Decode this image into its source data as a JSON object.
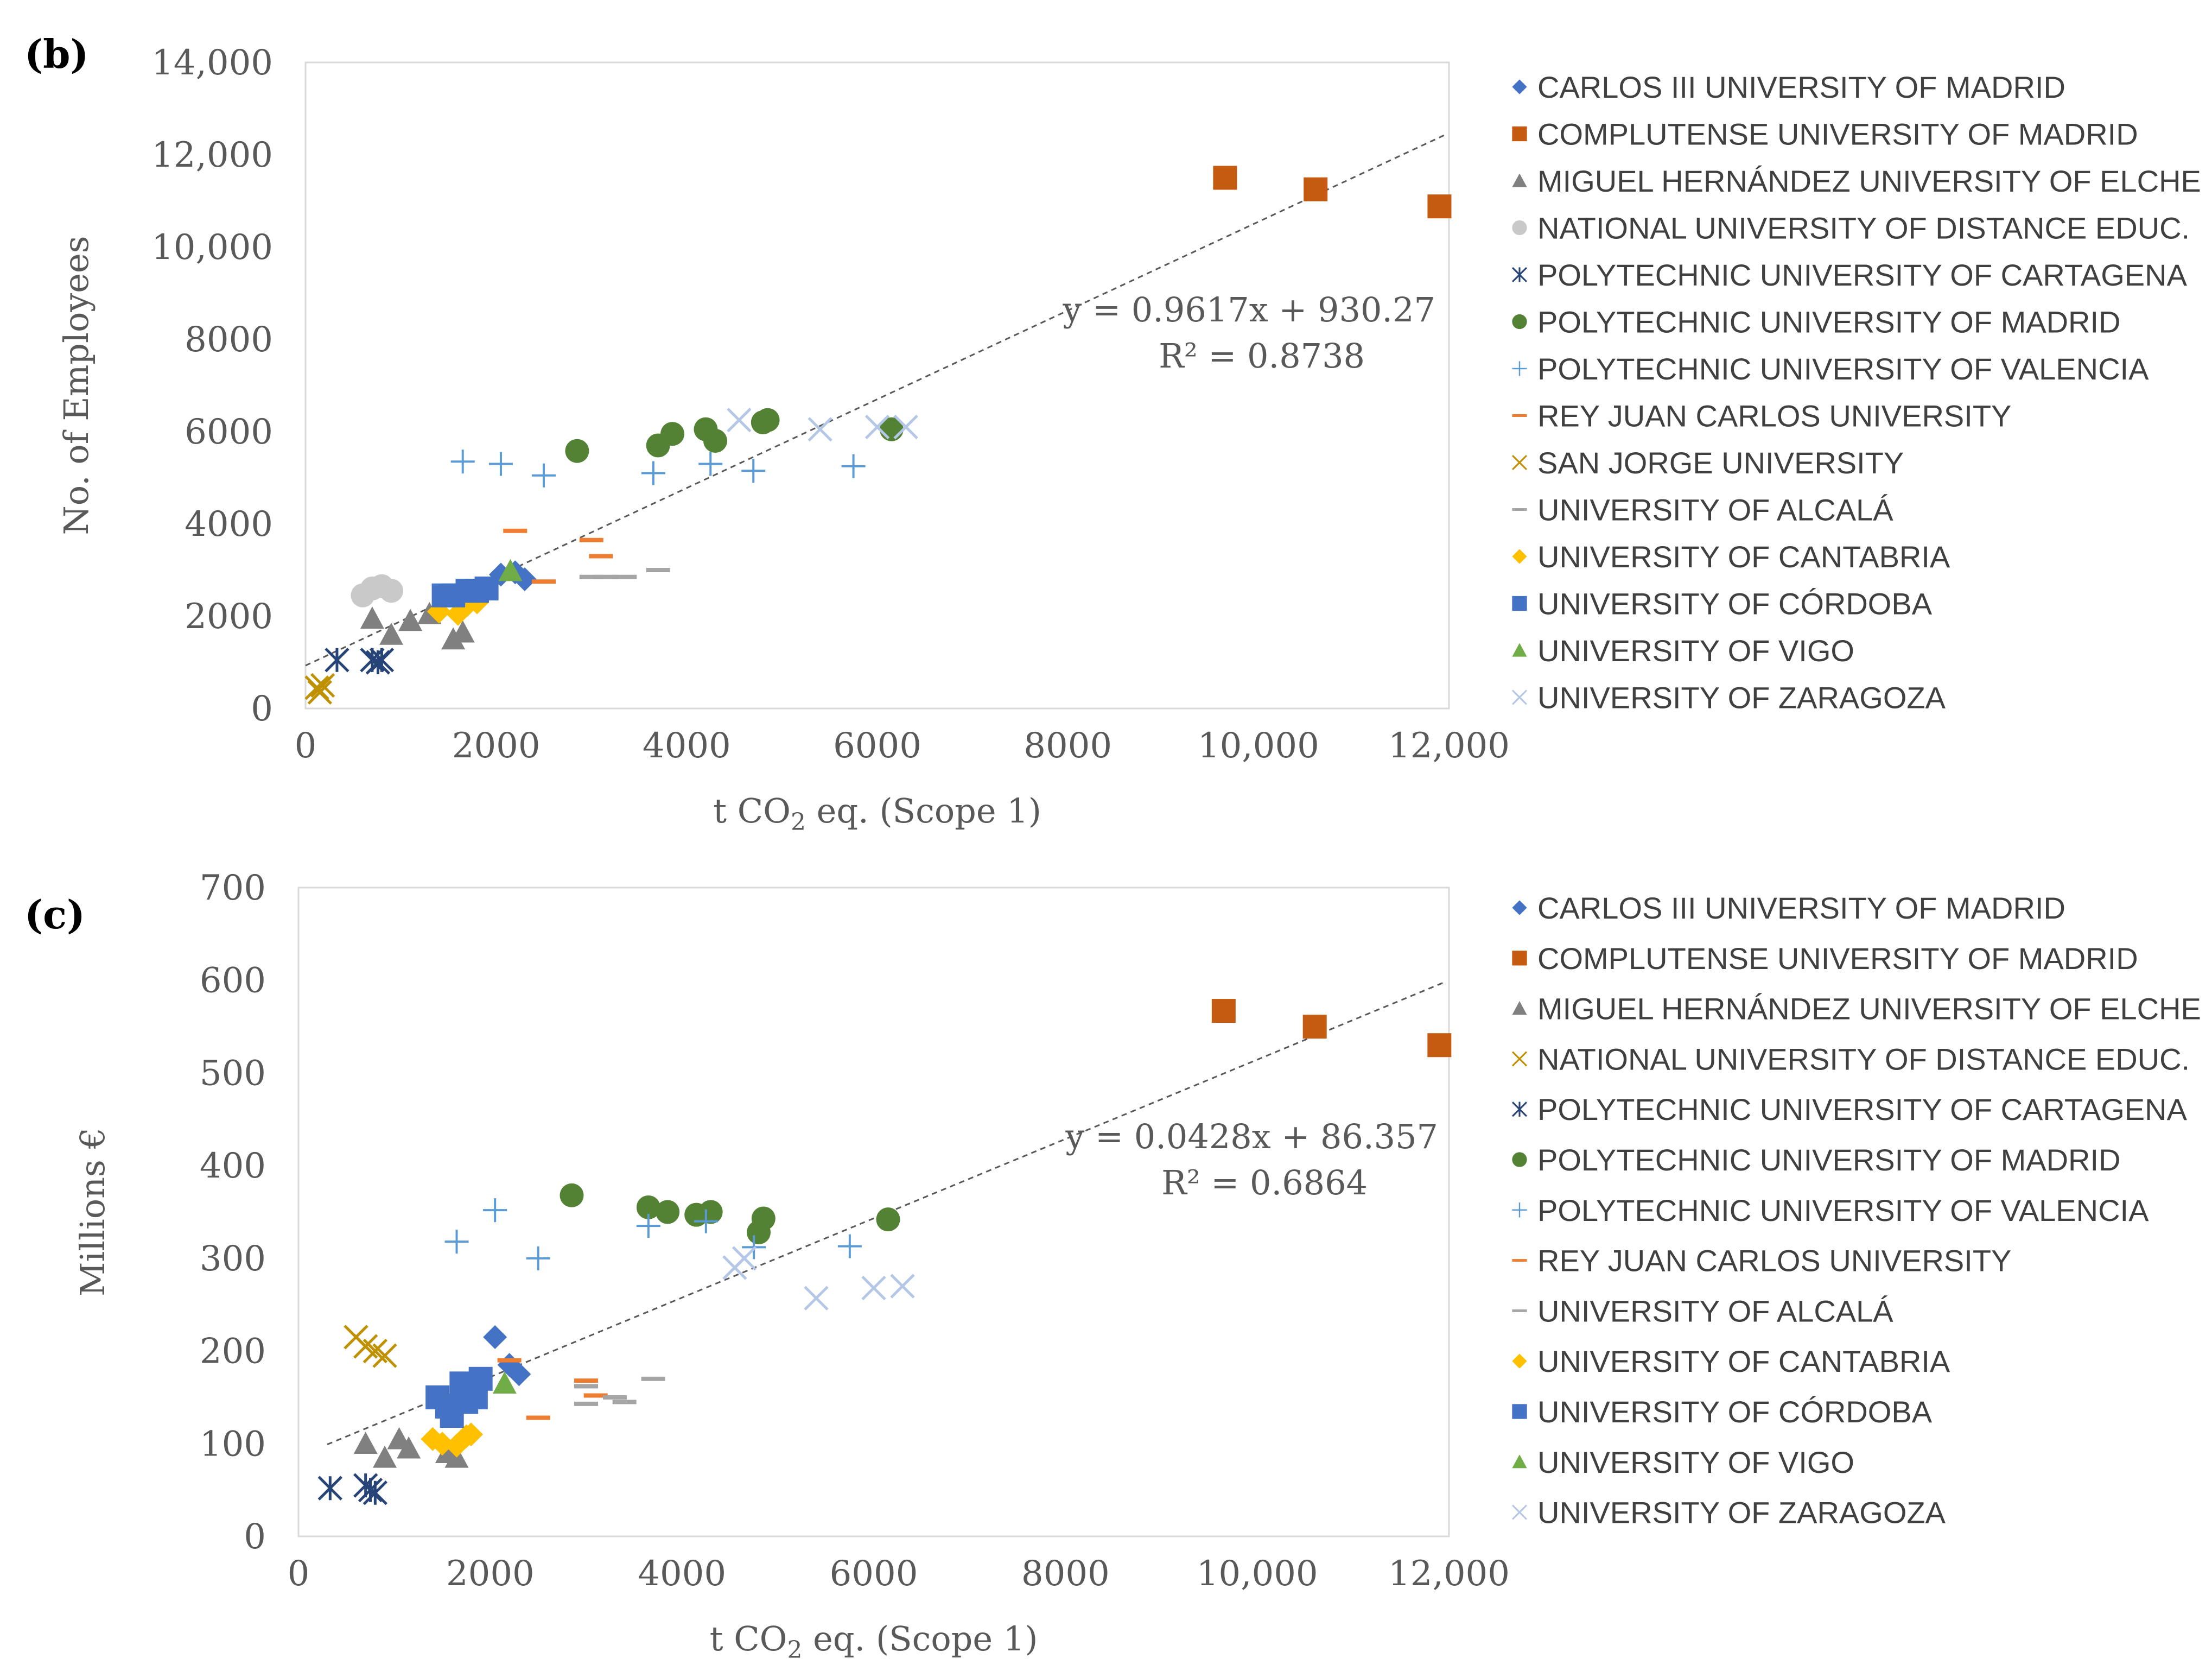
{
  "chart_data": [
    {
      "panel": "(b)",
      "type": "scatter",
      "xlabel": "t CO2 eq. (Scope 1)",
      "ylabel": "No. of Employees",
      "xlim": [
        0,
        12000
      ],
      "ylim": [
        0,
        14000
      ],
      "xticks": [
        "0",
        "2000",
        "4000",
        "6000",
        "8000",
        "10,000",
        "12,000"
      ],
      "yticks": [
        "0",
        "2000",
        "4000",
        "6000",
        "8000",
        "10,000",
        "12,000",
        "14,000"
      ],
      "trendline": {
        "slope": 0.9617,
        "intercept": 930.27,
        "x_range": [
          0,
          11950
        ],
        "equation": "y = 0.9617x + 930.27",
        "r2": "R² = 0.8738"
      },
      "series": [
        {
          "name": "CARLOS III UNIVERSITY OF MADRID",
          "marker": "diamond",
          "color": "#4472C4",
          "points": [
            [
              2050,
              2900
            ],
            [
              2200,
              2950
            ],
            [
              2300,
              2800
            ]
          ]
        },
        {
          "name": "COMPLUTENSE UNIVERSITY OF MADRID",
          "marker": "square",
          "color": "#C55A11",
          "points": [
            [
              9650,
              11500
            ],
            [
              10600,
              11250
            ],
            [
              11900,
              10880
            ]
          ]
        },
        {
          "name": "MIGUEL HERNÁNDEZ UNIVERSITY OF ELCHE",
          "marker": "triangle",
          "color": "#808080",
          "points": [
            [
              700,
              1950
            ],
            [
              900,
              1600
            ],
            [
              1100,
              1900
            ],
            [
              1300,
              2050
            ],
            [
              1550,
              1500
            ],
            [
              1650,
              1650
            ]
          ]
        },
        {
          "name": "NATIONAL UNIVERSITY OF DISTANCE EDUC.",
          "marker": "circle",
          "color": "#C9C9C9",
          "points": [
            [
              600,
              2450
            ],
            [
              700,
              2600
            ],
            [
              800,
              2650
            ],
            [
              900,
              2550
            ]
          ]
        },
        {
          "name": "POLYTECHNIC UNIVERSITY OF CARTAGENA",
          "marker": "asterisk",
          "color": "#264478",
          "points": [
            [
              330,
              1050
            ],
            [
              700,
              1050
            ],
            [
              760,
              1000
            ],
            [
              800,
              1050
            ]
          ]
        },
        {
          "name": "POLYTECHNIC UNIVERSITY OF MADRID",
          "marker": "circle",
          "color": "#548235",
          "points": [
            [
              2850,
              5580
            ],
            [
              3700,
              5700
            ],
            [
              3850,
              5950
            ],
            [
              4200,
              6050
            ],
            [
              4300,
              5800
            ],
            [
              4800,
              6200
            ],
            [
              4850,
              6250
            ],
            [
              6150,
              6050
            ]
          ]
        },
        {
          "name": "POLYTECHNIC UNIVERSITY OF VALENCIA",
          "marker": "plus",
          "color": "#5B9BD5",
          "points": [
            [
              1650,
              5350
            ],
            [
              2050,
              5300
            ],
            [
              2500,
              5050
            ],
            [
              3650,
              5100
            ],
            [
              4250,
              5300
            ],
            [
              4700,
              5150
            ],
            [
              5750,
              5250
            ]
          ]
        },
        {
          "name": "REY JUAN CARLOS UNIVERSITY",
          "marker": "dash",
          "color": "#ED7D31",
          "points": [
            [
              2200,
              3850
            ],
            [
              2500,
              2750
            ],
            [
              3000,
              3650
            ],
            [
              3100,
              3300
            ]
          ]
        },
        {
          "name": "SAN JORGE UNIVERSITY",
          "marker": "x",
          "color": "#BF9000",
          "points": [
            [
              120,
              450
            ],
            [
              150,
              350
            ],
            [
              180,
              500
            ]
          ]
        },
        {
          "name": "UNIVERSITY OF ALCALÁ",
          "marker": "dash",
          "color": "#A5A5A5",
          "points": [
            [
              3000,
              2850
            ],
            [
              3150,
              2850
            ],
            [
              3350,
              2850
            ],
            [
              3700,
              3000
            ]
          ]
        },
        {
          "name": "UNIVERSITY OF CANTABRIA",
          "marker": "diamond",
          "color": "#FFC000",
          "points": [
            [
              1400,
              2100
            ],
            [
              1600,
              2050
            ],
            [
              1700,
              2250
            ],
            [
              1800,
              2300
            ]
          ]
        },
        {
          "name": "UNIVERSITY OF CÓRDOBA",
          "marker": "square",
          "color": "#4472C4",
          "points": [
            [
              1450,
              2450
            ],
            [
              1550,
              2450
            ],
            [
              1700,
              2550
            ],
            [
              1800,
              2550
            ],
            [
              1900,
              2600
            ]
          ]
        },
        {
          "name": "UNIVERSITY OF VIGO",
          "marker": "triangle",
          "color": "#70AD47",
          "points": [
            [
              2150,
              2980
            ]
          ]
        },
        {
          "name": "UNIVERSITY OF ZARAGOZA",
          "marker": "x",
          "color": "#B4C7E7",
          "points": [
            [
              4550,
              6250
            ],
            [
              5400,
              6050
            ],
            [
              6000,
              6100
            ],
            [
              6300,
              6100
            ]
          ]
        }
      ]
    },
    {
      "panel": "(c)",
      "type": "scatter",
      "xlabel": "t CO2 eq. (Scope 1)",
      "ylabel": "Millions €",
      "xlim": [
        0,
        12000
      ],
      "ylim": [
        0,
        700
      ],
      "xticks": [
        "0",
        "2000",
        "4000",
        "6000",
        "8000",
        "10,000",
        "12,000"
      ],
      "yticks": [
        "0",
        "100",
        "200",
        "300",
        "400",
        "500",
        "600",
        "700"
      ],
      "trendline": {
        "slope": 0.0428,
        "intercept": 86.357,
        "x_range": [
          300,
          11950
        ],
        "equation": "y = 0.0428x + 86.357",
        "r2": "R² = 0.6864"
      },
      "series": [
        {
          "name": "CARLOS III UNIVERSITY OF MADRID",
          "marker": "diamond",
          "color": "#4472C4",
          "points": [
            [
              2050,
              215
            ],
            [
              2200,
              185
            ],
            [
              2300,
              175
            ]
          ]
        },
        {
          "name": "COMPLUTENSE UNIVERSITY OF MADRID",
          "marker": "square",
          "color": "#C55A11",
          "points": [
            [
              9650,
              567
            ],
            [
              10600,
              550
            ],
            [
              11900,
              530
            ]
          ]
        },
        {
          "name": "MIGUEL HERNÁNDEZ UNIVERSITY OF ELCHE",
          "marker": "triangle",
          "color": "#808080",
          "points": [
            [
              700,
              100
            ],
            [
              900,
              85
            ],
            [
              1050,
              105
            ],
            [
              1150,
              95
            ],
            [
              1550,
              90
            ],
            [
              1650,
              85
            ]
          ]
        },
        {
          "name": "NATIONAL UNIVERSITY OF DISTANCE EDUC.",
          "marker": "x",
          "color": "#BF9000",
          "points": [
            [
              600,
              215
            ],
            [
              700,
              205
            ],
            [
              800,
              200
            ],
            [
              900,
              195
            ]
          ]
        },
        {
          "name": "POLYTECHNIC UNIVERSITY OF CARTAGENA",
          "marker": "asterisk",
          "color": "#264478",
          "points": [
            [
              330,
              52
            ],
            [
              700,
              55
            ],
            [
              750,
              50
            ],
            [
              800,
              47
            ]
          ]
        },
        {
          "name": "POLYTECHNIC UNIVERSITY OF MADRID",
          "marker": "circle",
          "color": "#548235",
          "points": [
            [
              2850,
              368
            ],
            [
              3650,
              355
            ],
            [
              3850,
              350
            ],
            [
              4150,
              347
            ],
            [
              4300,
              350
            ],
            [
              4800,
              328
            ],
            [
              4850,
              343
            ],
            [
              6150,
              342
            ]
          ]
        },
        {
          "name": "POLYTECHNIC UNIVERSITY OF VALENCIA",
          "marker": "plus",
          "color": "#5B9BD5",
          "points": [
            [
              1650,
              318
            ],
            [
              2050,
              352
            ],
            [
              2500,
              300
            ],
            [
              3650,
              335
            ],
            [
              4250,
              340
            ],
            [
              4750,
              312
            ],
            [
              5750,
              313
            ]
          ]
        },
        {
          "name": "REY JUAN CARLOS UNIVERSITY",
          "marker": "dash",
          "color": "#ED7D31",
          "points": [
            [
              2200,
              190
            ],
            [
              2500,
              128
            ],
            [
              3000,
              168
            ],
            [
              3100,
              152
            ]
          ]
        },
        {
          "name": "UNIVERSITY OF ALCALÁ",
          "marker": "dash",
          "color": "#A5A5A5",
          "points": [
            [
              3000,
              143
            ],
            [
              3000,
              162
            ],
            [
              3300,
              150
            ],
            [
              3400,
              145
            ],
            [
              3700,
              170
            ]
          ]
        },
        {
          "name": "UNIVERSITY OF CANTABRIA",
          "marker": "diamond",
          "color": "#FFC000",
          "points": [
            [
              1400,
              105
            ],
            [
              1500,
              100
            ],
            [
              1650,
              98
            ],
            [
              1750,
              108
            ],
            [
              1800,
              110
            ]
          ]
        },
        {
          "name": "UNIVERSITY OF CÓRDOBA",
          "marker": "square",
          "color": "#4472C4",
          "points": [
            [
              1450,
              150
            ],
            [
              1550,
              140
            ],
            [
              1600,
              130
            ],
            [
              1700,
              165
            ],
            [
              1750,
              145
            ],
            [
              1850,
              150
            ],
            [
              1900,
              170
            ]
          ]
        },
        {
          "name": "UNIVERSITY OF VIGO",
          "marker": "triangle",
          "color": "#70AD47",
          "points": [
            [
              2150,
              165
            ]
          ]
        },
        {
          "name": "UNIVERSITY OF ZARAGOZA",
          "marker": "x",
          "color": "#B4C7E7",
          "points": [
            [
              4550,
              290
            ],
            [
              4650,
              300
            ],
            [
              5400,
              257
            ],
            [
              6000,
              268
            ],
            [
              6300,
              270
            ]
          ]
        }
      ]
    }
  ]
}
